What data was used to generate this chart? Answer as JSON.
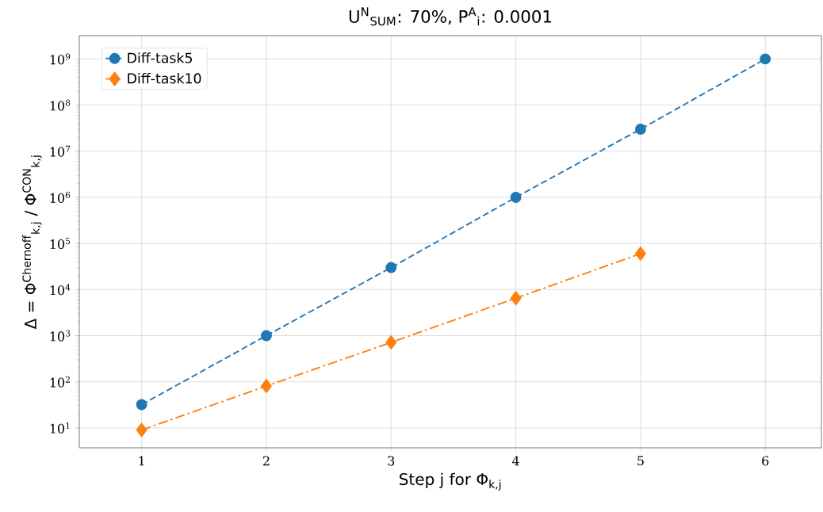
{
  "chart_data": {
    "type": "line",
    "title": "U$^{N}$$_{SUM}$: 70%, P$^{A}$$_{i}$: 0.0001",
    "xlabel": "Step j for Φ$_{k,j}$",
    "ylabel": "Δ = Φ$^{Chernoff}$$_{k,j}$ / Φ$^{CON}$$_{k,j}$",
    "series": [
      {
        "name": "Diff-task5",
        "color": "#1f77b4",
        "marker": "circle",
        "line_style": "dashed",
        "x": [
          1,
          2,
          3,
          4,
          5,
          6
        ],
        "values": [
          32,
          1000,
          30000,
          1000000,
          30000000,
          1000000000
        ]
      },
      {
        "name": "Diff-task10",
        "color": "#ff7f0e",
        "marker": "diamond",
        "line_style": "dashdot",
        "x": [
          1,
          2,
          3,
          4,
          5
        ],
        "values": [
          9,
          81,
          715,
          6500,
          60000
        ]
      }
    ],
    "log": "y",
    "grid": true,
    "legend": "top left",
    "xlim": [
      0.5,
      6.45
    ],
    "ylim": [
      3.7,
      3200000000
    ],
    "xticks": [
      1,
      2,
      3,
      4,
      5,
      6
    ],
    "yticks": [
      {
        "value": 10,
        "label": "10$^{1}$"
      },
      {
        "value": 100,
        "label": "10$^{2}$"
      },
      {
        "value": 1000,
        "label": "10$^{3}$"
      },
      {
        "value": 10000,
        "label": "10$^{4}$"
      },
      {
        "value": 100000,
        "label": "10$^{5}$"
      },
      {
        "value": 1000000,
        "label": "10$^{6}$"
      },
      {
        "value": 10000000,
        "label": "10$^{7}$"
      },
      {
        "value": 100000000,
        "label": "10$^{8}$"
      },
      {
        "value": 1000000000,
        "label": "10$^{9}$"
      }
    ]
  }
}
